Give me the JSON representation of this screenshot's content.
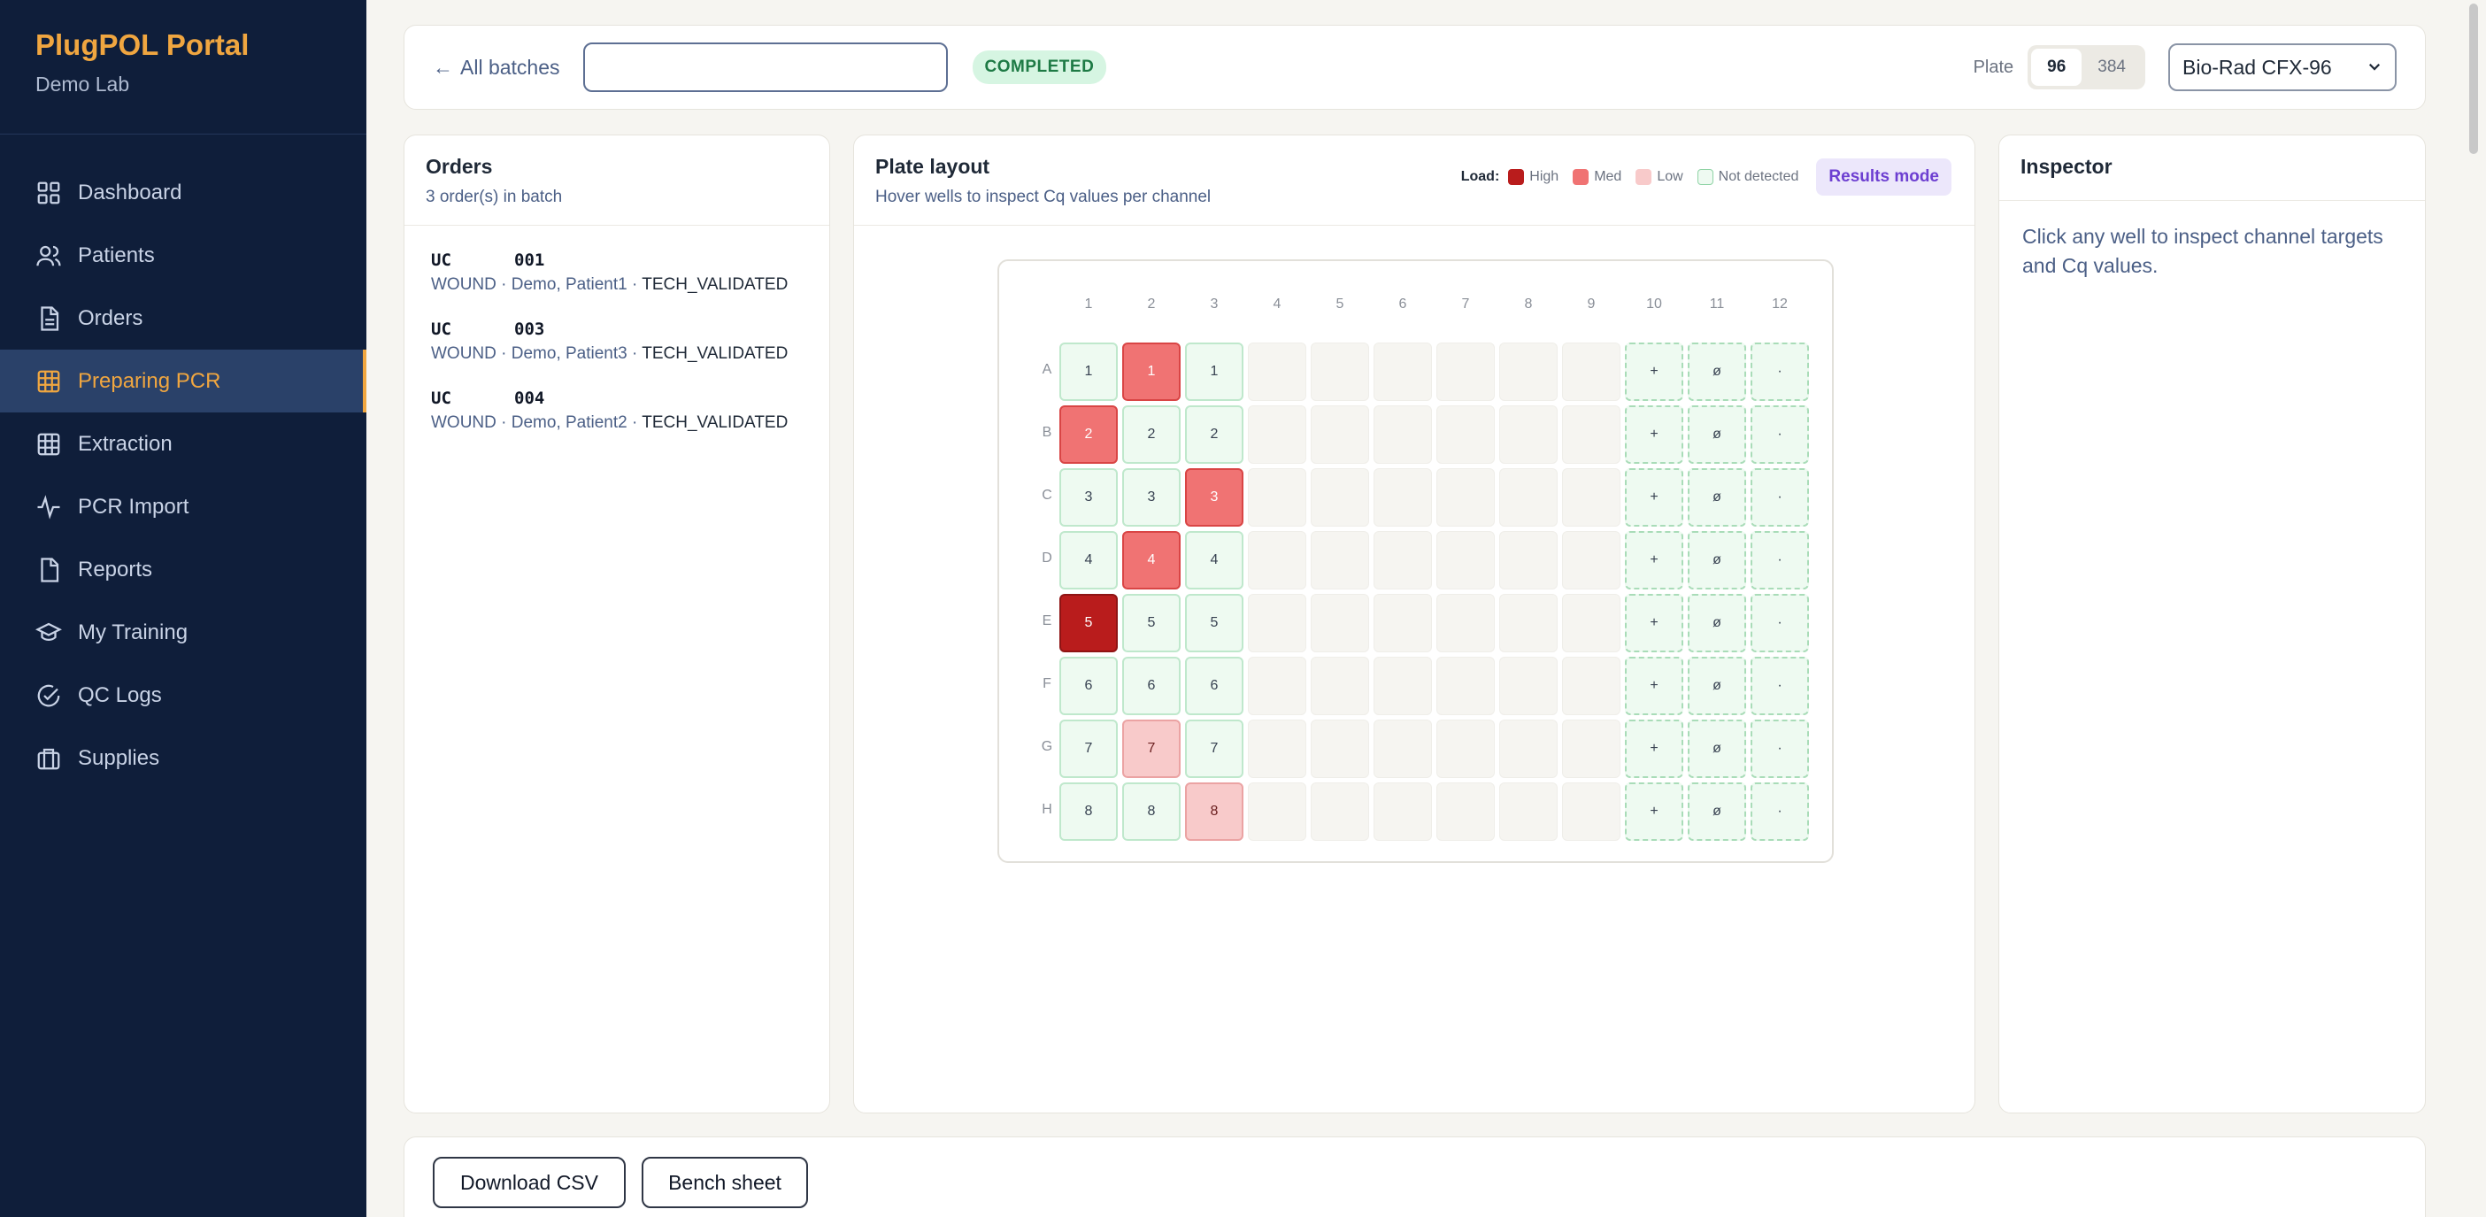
{
  "sidebar": {
    "brand": "PlugPOL Portal",
    "lab": "Demo Lab",
    "items": [
      {
        "label": "Dashboard",
        "icon": "grid-icon"
      },
      {
        "label": "Patients",
        "icon": "users-icon"
      },
      {
        "label": "Orders",
        "icon": "document-icon"
      },
      {
        "label": "Preparing PCR",
        "icon": "plate-grid-icon",
        "active": true
      },
      {
        "label": "Extraction",
        "icon": "table-icon"
      },
      {
        "label": "PCR Import",
        "icon": "activity-icon"
      },
      {
        "label": "Reports",
        "icon": "file-icon"
      },
      {
        "label": "My Training",
        "icon": "graduation-cap-icon"
      },
      {
        "label": "QC Logs",
        "icon": "check-circle-icon"
      },
      {
        "label": "Supplies",
        "icon": "briefcase-icon"
      }
    ]
  },
  "topbar": {
    "back_label": "All batches",
    "batch_input_value": "",
    "status": "COMPLETED",
    "plate_label": "Plate",
    "plate_options": [
      "96",
      "384"
    ],
    "plate_selected": "96",
    "instrument": "Bio-Rad CFX-96"
  },
  "orders": {
    "title": "Orders",
    "subtitle": "3 order(s) in batch",
    "items": [
      {
        "prefix": "UC",
        "id": "001",
        "detail": "WOUND · Demo, Patient1 · ",
        "state": "TECH_VALIDATED"
      },
      {
        "prefix": "UC",
        "id": "003",
        "detail": "WOUND · Demo, Patient3 · ",
        "state": "TECH_VALIDATED"
      },
      {
        "prefix": "UC",
        "id": "004",
        "detail": "WOUND · Demo, Patient2 · ",
        "state": "TECH_VALIDATED"
      }
    ]
  },
  "plate": {
    "title": "Plate layout",
    "subtitle": "Hover wells to inspect Cq values per channel",
    "legend_title": "Load:",
    "legend": [
      {
        "label": "High",
        "color": "#b91c1c"
      },
      {
        "label": "Med",
        "color": "#f07373"
      },
      {
        "label": "Low",
        "color": "#f8caca"
      },
      {
        "label": "Not detected",
        "color": "#eefaf1"
      }
    ],
    "mode_button": "Results mode",
    "columns": [
      "1",
      "2",
      "3",
      "4",
      "5",
      "6",
      "7",
      "8",
      "9",
      "10",
      "11",
      "12"
    ],
    "rows": [
      "A",
      "B",
      "C",
      "D",
      "E",
      "F",
      "G",
      "H"
    ],
    "well_numbers": [
      "1",
      "2",
      "3",
      "4",
      "5",
      "6",
      "7",
      "8"
    ],
    "load_grid": [
      [
        "nd",
        "med",
        "nd"
      ],
      [
        "med",
        "nd",
        "nd"
      ],
      [
        "nd",
        "nd",
        "med"
      ],
      [
        "nd",
        "med",
        "nd"
      ],
      [
        "high",
        "nd",
        "nd"
      ],
      [
        "nd",
        "nd",
        "nd"
      ],
      [
        "nd",
        "low",
        "nd"
      ],
      [
        "nd",
        "nd",
        "low"
      ]
    ],
    "control_symbols": [
      "+",
      "ø",
      "·"
    ]
  },
  "inspector": {
    "title": "Inspector",
    "hint": "Click any well to inspect channel targets and Cq values."
  },
  "actions": {
    "download_csv": "Download CSV",
    "bench_sheet": "Bench sheet"
  }
}
